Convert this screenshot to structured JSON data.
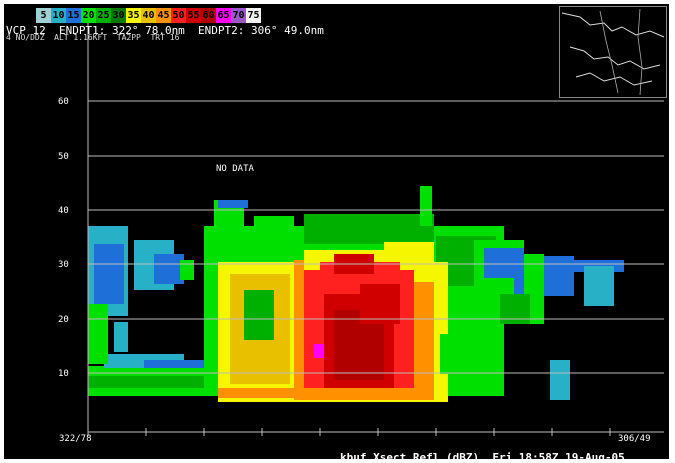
{
  "scale": {
    "labels": [
      "5",
      "10",
      "15",
      "20",
      "25",
      "30",
      "35",
      "40",
      "45",
      "50",
      "55",
      "60",
      "65",
      "70",
      "75"
    ],
    "colors": [
      "#9ed1d3",
      "#27b0c6",
      "#1e6fd8",
      "#00e000",
      "#00b000",
      "#007a00",
      "#f6f600",
      "#e8c000",
      "#ff9100",
      "#ff2020",
      "#d00000",
      "#b00000",
      "#ff00ff",
      "#9b59c7",
      "#f2f2f2"
    ]
  },
  "header": {
    "line1": "VCP 12  ENDPT1: 322° 78.0nm  ENDPT2: 306° 49.0nm",
    "line2": "4 NO/DDZ  ALT 1.16KFT  TA2PP  TRT 16"
  },
  "axis": {
    "y_ticks": [
      "60",
      "50",
      "40",
      "30",
      "20",
      "10"
    ]
  },
  "no_data_label": "NO DATA",
  "endpoint_left": "322/78",
  "endpoint_right": "306/49",
  "footer": "kbuf Xsect Refl (dBZ)  Fri 18:58Z 19-Aug-05",
  "colors": {
    "grid": "#bdbdbd",
    "background": "#000000"
  }
}
